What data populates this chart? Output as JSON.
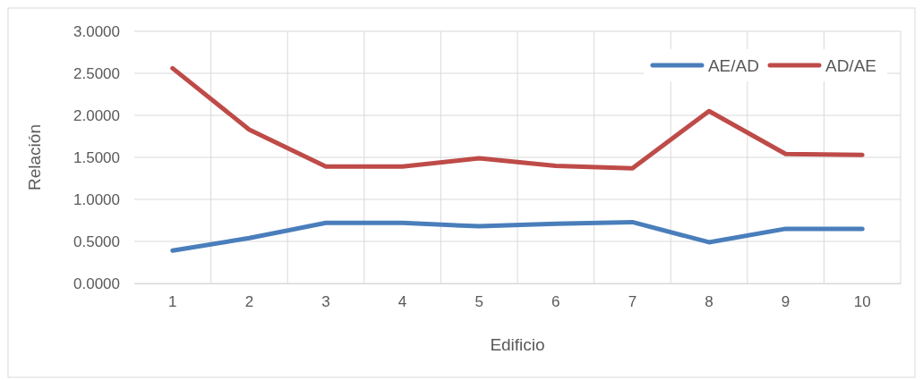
{
  "chart_data": {
    "type": "line",
    "xlabel": "Edificio",
    "ylabel": "Relación",
    "categories": [
      "1",
      "2",
      "3",
      "4",
      "5",
      "6",
      "7",
      "8",
      "9",
      "10"
    ],
    "series": [
      {
        "name": "AE/AD",
        "color": "#4a7ebb",
        "values": [
          0.39,
          0.54,
          0.72,
          0.72,
          0.68,
          0.71,
          0.73,
          0.49,
          0.65,
          0.65
        ]
      },
      {
        "name": "AD/AE",
        "color": "#be4b48",
        "values": [
          2.56,
          1.83,
          1.39,
          1.39,
          1.49,
          1.4,
          1.37,
          2.05,
          1.54,
          1.53
        ]
      }
    ],
    "ylim": [
      0,
      3
    ],
    "yticks": [
      {
        "value": 0,
        "label": "0.0000"
      },
      {
        "value": 0.5,
        "label": "0.5000"
      },
      {
        "value": 1,
        "label": "1.0000"
      },
      {
        "value": 1.5,
        "label": "1.5000"
      },
      {
        "value": 2,
        "label": "2.0000"
      },
      {
        "value": 2.5,
        "label": "2.5000"
      },
      {
        "value": 3,
        "label": "3.0000"
      }
    ],
    "grid": true,
    "legend": "top right",
    "marker": "none",
    "line_style": "solid"
  }
}
